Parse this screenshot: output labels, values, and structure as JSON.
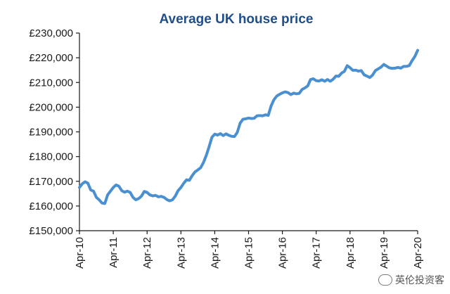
{
  "chart_data": {
    "type": "line",
    "title": "Average UK house price",
    "xlabel": "",
    "ylabel": "",
    "ylim": [
      150000,
      230000
    ],
    "yticks": [
      "£150,000",
      "£160,000",
      "£170,000",
      "£180,000",
      "£190,000",
      "£200,000",
      "£210,000",
      "£220,000",
      "£230,000"
    ],
    "xticks": [
      "Apr-10",
      "Apr-11",
      "Apr-12",
      "Apr-13",
      "Apr-14",
      "Apr-15",
      "Apr-16",
      "Apr-17",
      "Apr-18",
      "Apr-19",
      "Apr-20"
    ],
    "grid": false,
    "legend": "none",
    "series": [
      {
        "color": "#4a90d0",
        "x": [
          "2010-04",
          "2010-05",
          "2010-06",
          "2010-07",
          "2010-08",
          "2010-09",
          "2010-10",
          "2010-11",
          "2010-12",
          "2011-01",
          "2011-02",
          "2011-03",
          "2011-04",
          "2011-05",
          "2011-06",
          "2011-07",
          "2011-08",
          "2011-09",
          "2011-10",
          "2011-11",
          "2011-12",
          "2012-01",
          "2012-02",
          "2012-03",
          "2012-04",
          "2012-05",
          "2012-06",
          "2012-07",
          "2012-08",
          "2012-09",
          "2012-10",
          "2012-11",
          "2012-12",
          "2013-01",
          "2013-02",
          "2013-03",
          "2013-04",
          "2013-05",
          "2013-06",
          "2013-07",
          "2013-08",
          "2013-09",
          "2013-10",
          "2013-11",
          "2013-12",
          "2014-01",
          "2014-02",
          "2014-03",
          "2014-04",
          "2014-05",
          "2014-06",
          "2014-07",
          "2014-08",
          "2014-09",
          "2014-10",
          "2014-11",
          "2014-12",
          "2015-01",
          "2015-02",
          "2015-03",
          "2015-04",
          "2015-05",
          "2015-06",
          "2015-07",
          "2015-08",
          "2015-09",
          "2015-10",
          "2015-11",
          "2015-12",
          "2016-01",
          "2016-02",
          "2016-03",
          "2016-04",
          "2016-05",
          "2016-06",
          "2016-07",
          "2016-08",
          "2016-09",
          "2016-10",
          "2016-11",
          "2016-12",
          "2017-01",
          "2017-02",
          "2017-03",
          "2017-04",
          "2017-05",
          "2017-06",
          "2017-07",
          "2017-08",
          "2017-09",
          "2017-10",
          "2017-11",
          "2017-12",
          "2018-01",
          "2018-02",
          "2018-03",
          "2018-04",
          "2018-05",
          "2018-06",
          "2018-07",
          "2018-08",
          "2018-09",
          "2018-10",
          "2018-11",
          "2018-12",
          "2019-01",
          "2019-02",
          "2019-03",
          "2019-04",
          "2019-05",
          "2019-06",
          "2019-07",
          "2019-08",
          "2019-09",
          "2019-10",
          "2019-11",
          "2019-12",
          "2020-01",
          "2020-02",
          "2020-03",
          "2020-04"
        ],
        "values": [
          167500,
          169000,
          169800,
          169200,
          166500,
          166000,
          163500,
          162500,
          161200,
          161000,
          164500,
          166000,
          167500,
          168500,
          168000,
          166200,
          165600,
          166000,
          165500,
          163500,
          162500,
          163000,
          164000,
          165900,
          165500,
          164500,
          164100,
          164300,
          163700,
          163900,
          163500,
          162600,
          162100,
          162500,
          164000,
          166200,
          167500,
          169200,
          170600,
          170400,
          172300,
          173800,
          174600,
          175500,
          177600,
          180500,
          184000,
          187800,
          189100,
          188700,
          189300,
          188500,
          189200,
          188600,
          188200,
          188100,
          189800,
          193500,
          195100,
          195300,
          195600,
          195400,
          195500,
          196500,
          196600,
          196500,
          196900,
          196700,
          200500,
          203000,
          204500,
          205200,
          205800,
          206200,
          205900,
          205100,
          205700,
          205400,
          205600,
          207200,
          207800,
          208600,
          211200,
          211500,
          210700,
          210600,
          211100,
          210500,
          211200,
          210500,
          211300,
          212600,
          212500,
          213800,
          214500,
          216800,
          216000,
          214900,
          215000,
          214600,
          214800,
          213100,
          212600,
          212000,
          213000,
          214800,
          215500,
          216200,
          217300,
          216600,
          215900,
          215700,
          215800,
          216100,
          215800,
          216500,
          216500,
          216800,
          218800,
          220500,
          223000
        ]
      }
    ]
  },
  "watermark": {
    "text": "英伦投资客"
  }
}
